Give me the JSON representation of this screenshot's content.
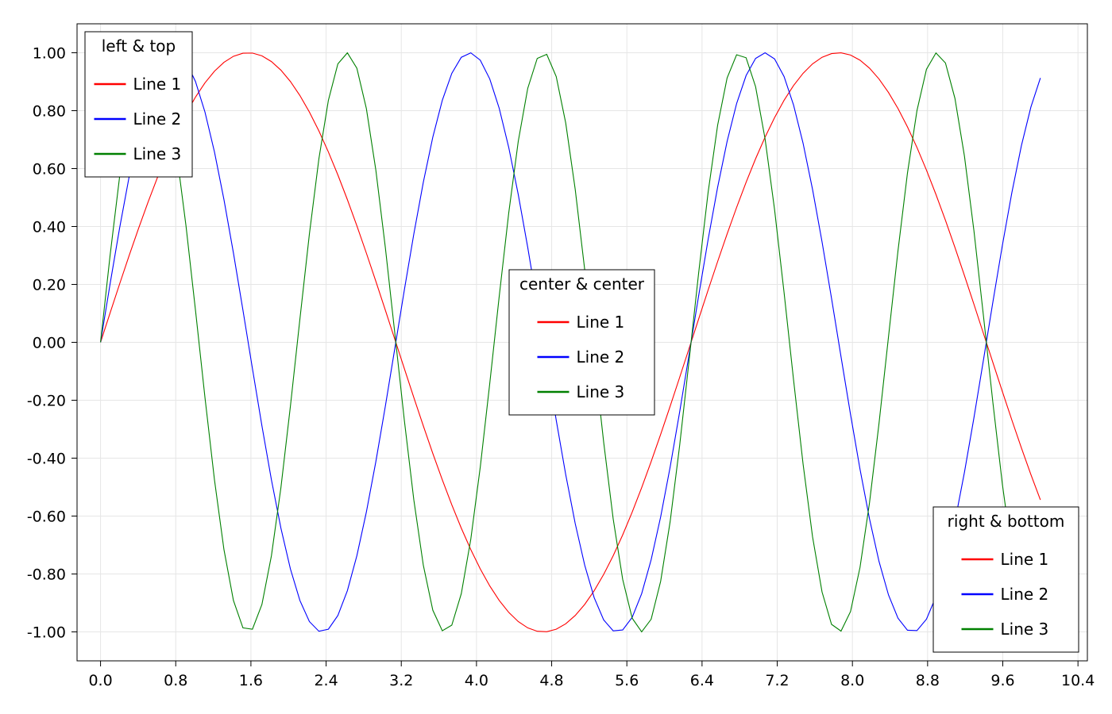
{
  "chart_data": {
    "type": "line",
    "title": "",
    "xlabel": "",
    "ylabel": "",
    "xlim": [
      -0.25,
      10.5
    ],
    "ylim": [
      -1.1,
      1.1
    ],
    "grid": true,
    "x_ticks": [
      0.0,
      0.8,
      1.6,
      2.4,
      3.2,
      4.0,
      4.8,
      5.6,
      6.4,
      7.2,
      8.0,
      8.8,
      9.6,
      10.4
    ],
    "x_tick_labels": [
      "0.0",
      "0.8",
      "1.6",
      "2.4",
      "3.2",
      "4.0",
      "4.8",
      "5.6",
      "6.4",
      "7.2",
      "8.0",
      "8.8",
      "9.6",
      "10.4"
    ],
    "y_ticks": [
      1.0,
      0.8,
      0.6,
      0.4,
      0.2,
      0.0,
      -0.2,
      -0.4,
      -0.6,
      -0.8,
      -1.0
    ],
    "y_tick_labels": [
      "1.00",
      "0.80",
      "0.60",
      "0.40",
      "0.20",
      "0.00",
      "-0.20",
      "-0.40",
      "-0.60",
      "-0.80",
      "-1.00"
    ],
    "x_range": [
      0,
      10
    ],
    "num_points": 100,
    "series": [
      {
        "name": "Line 1",
        "color": "#ff0000",
        "function": "sin(x)"
      },
      {
        "name": "Line 2",
        "color": "#0000ff",
        "function": "sin(2x)"
      },
      {
        "name": "Line 3",
        "color": "#008000",
        "function": "sin(3x)"
      }
    ],
    "legends": [
      {
        "title": "left & top",
        "placement": "left-top",
        "items": [
          "Line 1",
          "Line 2",
          "Line 3"
        ]
      },
      {
        "title": "center & center",
        "placement": "center-center",
        "items": [
          "Line 1",
          "Line 2",
          "Line 3"
        ]
      },
      {
        "title": "right & bottom",
        "placement": "right-bottom",
        "items": [
          "Line 1",
          "Line 2",
          "Line 3"
        ]
      }
    ]
  }
}
